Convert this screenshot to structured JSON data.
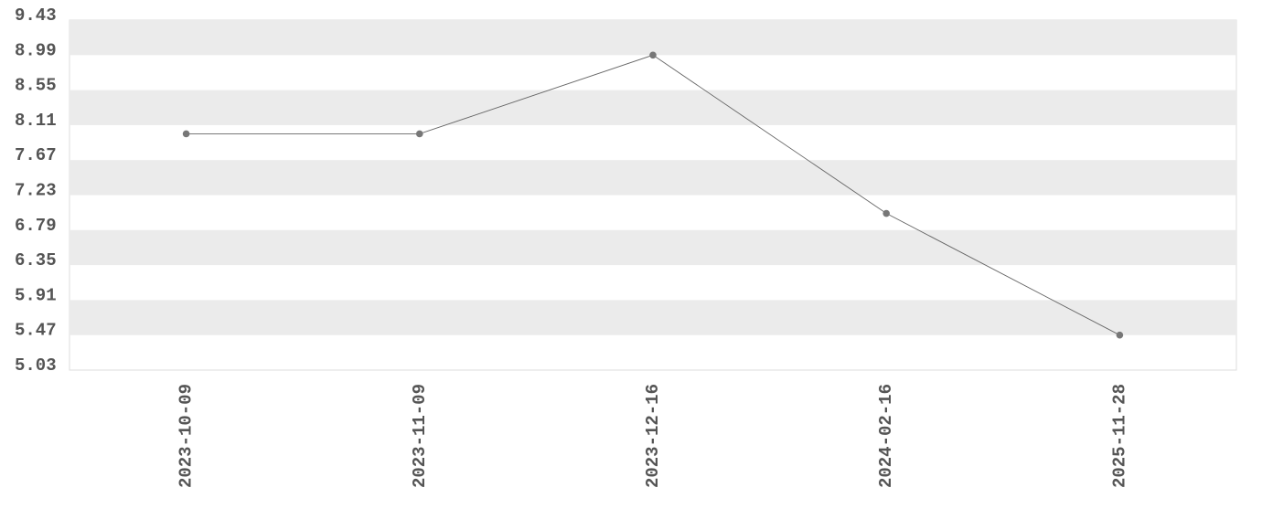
{
  "chart_data": {
    "type": "line",
    "categories": [
      "2023-10-09",
      "2023-11-09",
      "2023-12-16",
      "2024-02-16",
      "2025-11-28"
    ],
    "values": [
      8.0,
      8.0,
      8.99,
      7.0,
      5.47
    ],
    "color": "#666666",
    "marker_color": "#777777",
    "band_color": "#ebebeb",
    "ylim": [
      5.03,
      9.43
    ],
    "yticks": [
      5.03,
      5.47,
      5.91,
      6.35,
      6.79,
      7.23,
      7.67,
      8.11,
      8.55,
      8.99,
      9.43
    ],
    "grid": "bands"
  }
}
